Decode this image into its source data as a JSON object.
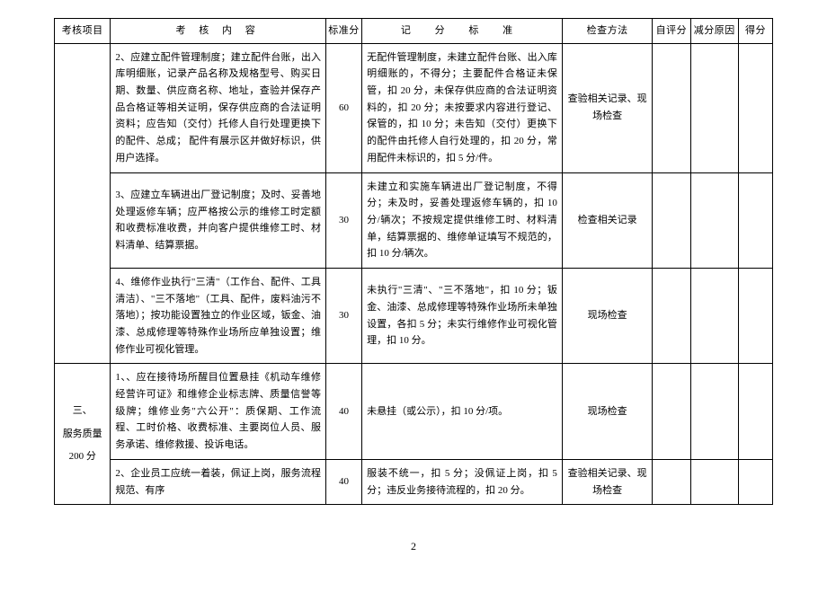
{
  "headers": {
    "project": "考核项目",
    "content": "考 核 内 容",
    "standardScore": "标准分",
    "criteria": "记 分 标 准",
    "method": "检查方法",
    "selfScore": "自评分",
    "reason": "减分原因",
    "score": "得分"
  },
  "sectionLabel": {
    "line1": "三、",
    "line2": "服务质量",
    "line3": "200 分"
  },
  "rows": [
    {
      "content": "2、应建立配件管理制度；建立配件台账，出入库明细账，记录产品名称及规格型号、购买日期、数量、供应商名称、地址，查验并保存产品合格证等相关证明，保存供应商的合法证明资料；应告知（交付）托修人自行处理更换下的配件、总成； 配件有展示区并做好标识，供用户选择。",
      "std": "60",
      "criteria": "无配件管理制度，未建立配件台账、出入库明细账的，不得分；主要配件合格证未保管，扣 20 分，未保存供应商的合法证明资料的，扣 20 分；未按要求内容进行登记、保管的，扣 10 分；未告知（交付）更换下的配件由托修人自行处理的，扣 20 分，常用配件未标识的，扣 5 分/件。",
      "method": "查验相关记录、现场检查"
    },
    {
      "content": "3、应建立车辆进出厂登记制度；及时、妥善地处理返修车辆；应严格按公示的维修工时定额和收费标准收费，并向客户提供维修工时、材料清单、结算票据。",
      "std": "30",
      "criteria": "未建立和实施车辆进出厂登记制度，不得分；未及时，妥善处理返修车辆的，扣 10 分/辆次；不按规定提供维修工时、材料清单，结算票据的、维修单证填写不规范的，扣 10 分/辆次。",
      "method": "检查相关记录"
    },
    {
      "content": "4、维修作业执行\"三清\"（工作台、配件、工具清洁）、\"三不落地\"（工具、配件，废料油污不落地）；按功能设置独立的作业区域，钣金、油漆、总成修理等特殊作业场所应单独设置；维修作业可视化管理。",
      "std": "30",
      "criteria": "未执行\"三清\"、\"三不落地\"，扣 10 分；钣金、油漆、总成修理等特殊作业场所未单独设置，各扣 5 分；未实行维修作业可视化管理，扣 10 分。",
      "method": "现场检查"
    },
    {
      "content": "1、、应在接待场所醒目位置悬挂《机动车维修经营许可证》和维修企业标志牌、质量信誉等级牌；维修业务\"六公开\"：质保期、工作流程、工时价格、收费标准、主要岗位人员、服务承诺、维修救援、投诉电话。",
      "std": "40",
      "criteria": "未悬挂（或公示），扣 10 分/项。",
      "method": "现场检查"
    },
    {
      "content": "2、企业员工应统一着装，佩证上岗，服务流程规范、有序",
      "std": "40",
      "criteria": "服装不统一，扣 5 分；没佩证上岗，扣 5 分；违反业务接待流程的，扣 20 分。",
      "method": "查验相关记录、现场检查"
    }
  ],
  "pageNumber": "2"
}
